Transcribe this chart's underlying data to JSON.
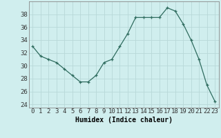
{
  "x": [
    0,
    1,
    2,
    3,
    4,
    5,
    6,
    7,
    8,
    9,
    10,
    11,
    12,
    13,
    14,
    15,
    16,
    17,
    18,
    19,
    20,
    21,
    22,
    23
  ],
  "y": [
    33,
    31.5,
    31,
    30.5,
    29.5,
    28.5,
    27.5,
    27.5,
    28.5,
    30.5,
    31,
    33,
    35,
    37.5,
    37.5,
    37.5,
    37.5,
    39,
    38.5,
    36.5,
    34,
    31,
    27,
    24.5
  ],
  "xlabel": "Humidex (Indice chaleur)",
  "ylabel": "",
  "ylim": [
    23.5,
    40
  ],
  "yticks": [
    24,
    26,
    28,
    30,
    32,
    34,
    36,
    38
  ],
  "xlim": [
    -0.5,
    23.5
  ],
  "bg_color": "#d0eeee",
  "grid_color": "#b8d8d8",
  "line_color": "#2e6b5e",
  "marker_color": "#2e6b5e",
  "xlabel_fontsize": 7,
  "tick_fontsize": 6.5
}
